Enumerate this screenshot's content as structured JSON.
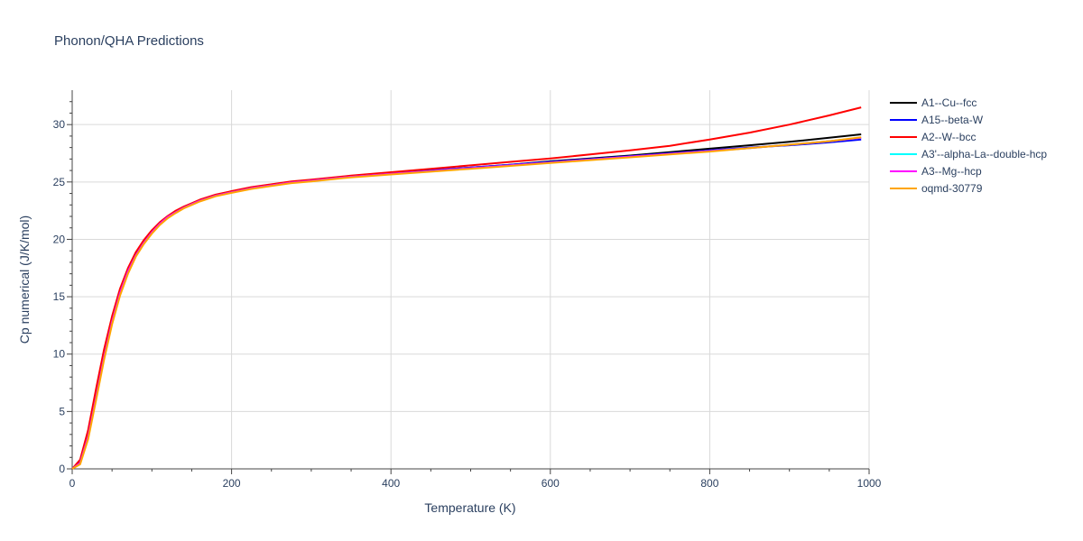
{
  "chart_data": {
    "type": "line",
    "title": "Phonon/QHA Predictions",
    "xlabel": "Temperature (K)",
    "ylabel": "Cp numerical (J/K/mol)",
    "xlim": [
      0,
      1000
    ],
    "ylim": [
      0,
      33
    ],
    "x_ticks": [
      0,
      200,
      400,
      600,
      800,
      1000
    ],
    "y_ticks": [
      0,
      5,
      10,
      15,
      20,
      25,
      30
    ],
    "grid": true,
    "legend_position": "right",
    "x": [
      0,
      10,
      20,
      30,
      40,
      50,
      60,
      70,
      80,
      90,
      100,
      110,
      120,
      130,
      140,
      150,
      160,
      180,
      200,
      225,
      250,
      275,
      300,
      350,
      400,
      450,
      500,
      550,
      600,
      650,
      700,
      750,
      800,
      850,
      900,
      950,
      990
    ],
    "series": [
      {
        "name": "A1--Cu--fcc",
        "color": "#000000",
        "values": [
          0,
          0.6,
          3.0,
          6.5,
          10.0,
          13.0,
          15.5,
          17.3,
          18.7,
          19.8,
          20.7,
          21.4,
          22.0,
          22.4,
          22.8,
          23.1,
          23.4,
          23.85,
          24.15,
          24.5,
          24.75,
          25.0,
          25.15,
          25.5,
          25.75,
          26.0,
          26.25,
          26.5,
          26.8,
          27.05,
          27.3,
          27.6,
          27.9,
          28.2,
          28.5,
          28.85,
          29.15
        ]
      },
      {
        "name": "A15--beta-W",
        "color": "#0000ff",
        "values": [
          0,
          0.7,
          3.2,
          6.8,
          10.3,
          13.2,
          15.6,
          17.4,
          18.8,
          19.9,
          20.75,
          21.45,
          22.0,
          22.45,
          22.8,
          23.1,
          23.4,
          23.85,
          24.15,
          24.5,
          24.75,
          25.0,
          25.15,
          25.5,
          25.75,
          26.0,
          26.25,
          26.5,
          26.75,
          27.0,
          27.25,
          27.5,
          27.75,
          28.0,
          28.2,
          28.45,
          28.7
        ]
      },
      {
        "name": "A2--W--bcc",
        "color": "#ff0000",
        "values": [
          0,
          0.8,
          3.4,
          7.0,
          10.4,
          13.3,
          15.7,
          17.5,
          18.9,
          19.95,
          20.8,
          21.5,
          22.05,
          22.5,
          22.85,
          23.15,
          23.45,
          23.9,
          24.2,
          24.55,
          24.8,
          25.05,
          25.2,
          25.55,
          25.85,
          26.15,
          26.45,
          26.75,
          27.05,
          27.4,
          27.75,
          28.15,
          28.7,
          29.3,
          30.0,
          30.8,
          31.5
        ]
      },
      {
        "name": "A3'--alpha-La--double-hcp",
        "color": "#00ffff",
        "values": [
          0,
          0.5,
          2.8,
          6.2,
          9.7,
          12.8,
          15.3,
          17.2,
          18.6,
          19.7,
          20.6,
          21.35,
          21.95,
          22.35,
          22.75,
          23.05,
          23.35,
          23.8,
          24.1,
          24.45,
          24.7,
          24.95,
          25.1,
          25.45,
          25.7,
          25.95,
          26.2,
          26.45,
          26.7,
          26.95,
          27.2,
          27.45,
          27.7,
          27.95,
          28.25,
          28.55,
          28.85
        ]
      },
      {
        "name": "A3--Mg--hcp",
        "color": "#ff00ff",
        "values": [
          0,
          0.5,
          2.8,
          6.2,
          9.7,
          12.8,
          15.3,
          17.2,
          18.6,
          19.7,
          20.6,
          21.35,
          21.95,
          22.35,
          22.75,
          23.05,
          23.35,
          23.8,
          24.1,
          24.45,
          24.7,
          24.95,
          25.1,
          25.45,
          25.7,
          25.95,
          26.2,
          26.45,
          26.7,
          26.95,
          27.2,
          27.45,
          27.7,
          27.95,
          28.25,
          28.55,
          28.85
        ]
      },
      {
        "name": "oqmd-30779",
        "color": "#ffa500",
        "values": [
          0,
          0.4,
          2.6,
          6.0,
          9.5,
          12.6,
          15.1,
          17.0,
          18.5,
          19.6,
          20.5,
          21.25,
          21.85,
          22.3,
          22.7,
          23.0,
          23.3,
          23.75,
          24.05,
          24.4,
          24.65,
          24.9,
          25.05,
          25.4,
          25.65,
          25.9,
          26.15,
          26.4,
          26.65,
          26.9,
          27.15,
          27.4,
          27.65,
          27.95,
          28.25,
          28.55,
          28.9
        ]
      }
    ]
  }
}
